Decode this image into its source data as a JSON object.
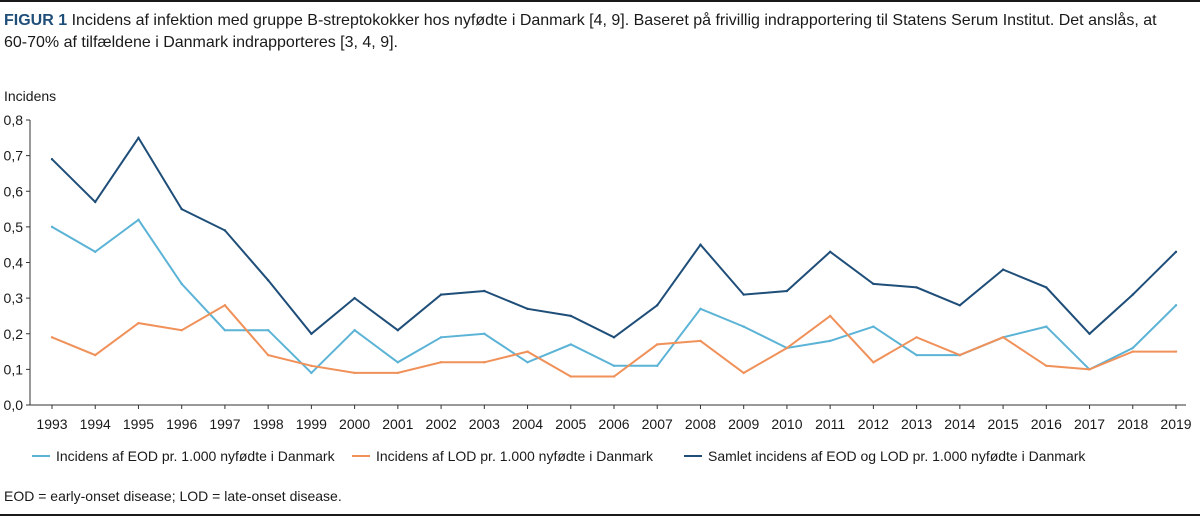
{
  "caption": {
    "figure_label": "FIGUR 1",
    "text": "Incidens af infektion med gruppe B-streptokokker hos nyfødte i Danmark [4, 9]. Baseret på frivillig indrapportering til Statens Serum Institut. Det anslås, at 60-70% af tilfældene i Danmark indrapporteres [3, 4, 9]."
  },
  "footnote": "EOD = early-onset disease; LOD = late-onset disease.",
  "colors": {
    "eod": "#5bb3d6",
    "lod": "#f0915a",
    "total": "#1f4e79",
    "axis": "#333333",
    "label": "#1f4e79"
  },
  "chart_data": {
    "type": "line",
    "ylabel": "Incidens",
    "xlabel": "",
    "ylim": [
      0,
      0.8
    ],
    "yticks": [
      "0,0",
      "0,1",
      "0,2",
      "0,3",
      "0,4",
      "0,5",
      "0,6",
      "0,7",
      "0,8"
    ],
    "x": [
      "1993",
      "1994",
      "1995",
      "1996",
      "1997",
      "1998",
      "1999",
      "2000",
      "2001",
      "2002",
      "2003",
      "2004",
      "2005",
      "2006",
      "2007",
      "2008",
      "2009",
      "2010",
      "2011",
      "2012",
      "2013",
      "2014",
      "2015",
      "2016",
      "2017",
      "2018",
      "2019"
    ],
    "grid": false,
    "legend_position": "bottom",
    "series": [
      {
        "key": "eod",
        "name": "Incidens af EOD pr. 1.000 nyfødte i Danmark",
        "values": [
          0.5,
          0.43,
          0.52,
          0.34,
          0.21,
          0.21,
          0.09,
          0.21,
          0.12,
          0.19,
          0.2,
          0.12,
          0.17,
          0.11,
          0.11,
          0.27,
          0.22,
          0.16,
          0.18,
          0.22,
          0.14,
          0.14,
          0.19,
          0.22,
          0.1,
          0.16,
          0.28
        ]
      },
      {
        "key": "lod",
        "name": "Incidens af LOD pr.  1.000 nyfødte i Danmark",
        "values": [
          0.19,
          0.14,
          0.23,
          0.21,
          0.28,
          0.14,
          0.11,
          0.09,
          0.09,
          0.12,
          0.12,
          0.15,
          0.08,
          0.08,
          0.17,
          0.18,
          0.09,
          0.16,
          0.25,
          0.12,
          0.19,
          0.14,
          0.19,
          0.11,
          0.1,
          0.15,
          0.15
        ]
      },
      {
        "key": "total",
        "name": "Samlet incidens af EOD og LOD pr. 1.000 nyfødte i Danmark",
        "values": [
          0.69,
          0.57,
          0.75,
          0.55,
          0.49,
          0.35,
          0.2,
          0.3,
          0.21,
          0.31,
          0.32,
          0.27,
          0.25,
          0.19,
          0.28,
          0.45,
          0.31,
          0.32,
          0.43,
          0.34,
          0.33,
          0.28,
          0.38,
          0.33,
          0.2,
          0.31,
          0.43
        ]
      }
    ]
  }
}
